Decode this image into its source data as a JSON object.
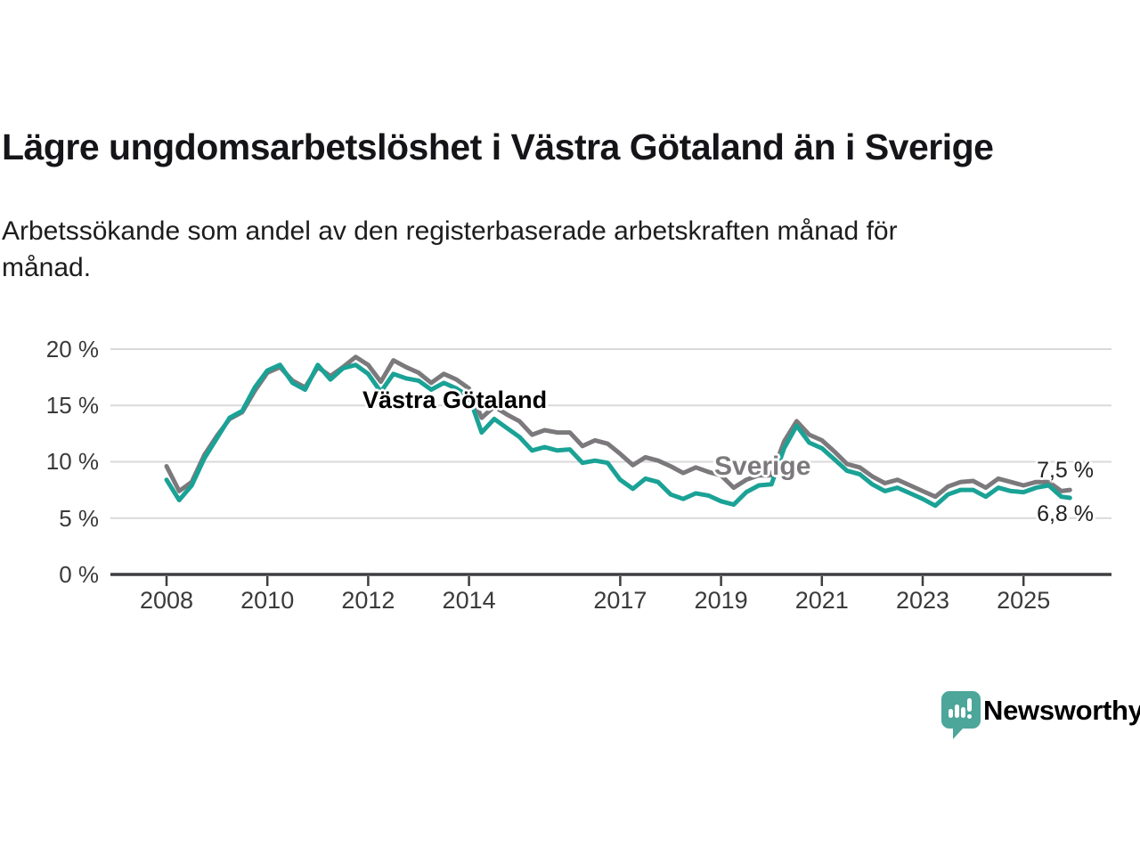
{
  "chart_data": {
    "type": "line",
    "title": "Lägre ungdomsarbetslöshet i Västra Götaland än i Sverige",
    "subtitle_lines": [
      "Arbetssökande som andel av den registerbaserade arbetskraften månad för",
      "månad."
    ],
    "xlabel": "",
    "ylabel": "",
    "ylim": [
      0,
      21
    ],
    "grid": "horizontal",
    "legend_position": "inline-labels",
    "yticks": [
      {
        "v": 20,
        "label": "20 %"
      },
      {
        "v": 15,
        "label": "15 %"
      },
      {
        "v": 10,
        "label": "10 %"
      },
      {
        "v": 5,
        "label": "5 %"
      },
      {
        "v": 0,
        "label": "0 %"
      }
    ],
    "xticks": [
      {
        "v": 2008,
        "label": "2008"
      },
      {
        "v": 2010,
        "label": "2010"
      },
      {
        "v": 2012,
        "label": "2012"
      },
      {
        "v": 2014,
        "label": "2014"
      },
      {
        "v": 2017,
        "label": "2017"
      },
      {
        "v": 2019,
        "label": "2019"
      },
      {
        "v": 2021,
        "label": "2021"
      },
      {
        "v": 2023,
        "label": "2023"
      },
      {
        "v": 2025,
        "label": "2025"
      }
    ],
    "x": [
      2008,
      2008.25,
      2008.5,
      2008.75,
      2009,
      2009.25,
      2009.5,
      2009.75,
      2010,
      2010.25,
      2010.5,
      2010.75,
      2011,
      2011.25,
      2011.5,
      2011.75,
      2012,
      2012.25,
      2012.5,
      2012.75,
      2013,
      2013.25,
      2013.5,
      2013.75,
      2014,
      2014.25,
      2014.5,
      2014.75,
      2015,
      2015.25,
      2015.5,
      2015.75,
      2016,
      2016.25,
      2016.5,
      2016.75,
      2017,
      2017.25,
      2017.5,
      2017.75,
      2018,
      2018.25,
      2018.5,
      2018.75,
      2019,
      2019.25,
      2019.5,
      2019.75,
      2020,
      2020.25,
      2020.5,
      2020.75,
      2021,
      2021.25,
      2021.5,
      2021.75,
      2022,
      2022.25,
      2022.5,
      2022.75,
      2023,
      2023.25,
      2023.5,
      2023.75,
      2024,
      2024.25,
      2024.5,
      2024.75,
      2025,
      2025.25,
      2025.5,
      2025.75,
      2025.92
    ],
    "series": [
      {
        "name": "Sverige",
        "color": "#7b797c",
        "end_value": "7,5 %",
        "values": [
          9.6,
          7.4,
          8.2,
          10.6,
          12.3,
          13.8,
          14.4,
          16.3,
          17.9,
          18.4,
          17.2,
          16.6,
          18.4,
          17.6,
          18.4,
          19.3,
          18.6,
          17.1,
          19.0,
          18.4,
          17.9,
          17.0,
          17.8,
          17.3,
          16.5,
          13.9,
          14.9,
          14.2,
          13.6,
          12.4,
          12.8,
          12.6,
          12.6,
          11.4,
          11.9,
          11.6,
          10.7,
          9.7,
          10.4,
          10.1,
          9.6,
          9.0,
          9.5,
          9.1,
          8.8,
          7.7,
          8.4,
          8.8,
          8.8,
          11.8,
          13.6,
          12.4,
          11.9,
          10.9,
          9.8,
          9.5,
          8.7,
          8.1,
          8.4,
          7.9,
          7.4,
          6.9,
          7.8,
          8.2,
          8.3,
          7.7,
          8.5,
          8.2,
          7.9,
          8.2,
          8.2,
          7.4,
          7.5
        ]
      },
      {
        "name": "Västra Götaland",
        "color": "#1aa296",
        "end_value": "6,8 %",
        "values": [
          8.4,
          6.6,
          7.9,
          10.3,
          12.1,
          13.9,
          14.5,
          16.6,
          18.1,
          18.6,
          17.0,
          16.4,
          18.6,
          17.3,
          18.3,
          18.6,
          17.8,
          16.2,
          17.8,
          17.4,
          17.2,
          16.4,
          17.0,
          16.5,
          15.8,
          12.6,
          13.8,
          13.0,
          12.2,
          11.0,
          11.3,
          11.0,
          11.1,
          9.9,
          10.1,
          9.9,
          8.4,
          7.6,
          8.5,
          8.2,
          7.1,
          6.7,
          7.2,
          7.0,
          6.5,
          6.2,
          7.3,
          7.9,
          8.0,
          11.2,
          13.2,
          11.7,
          11.2,
          10.2,
          9.2,
          8.9,
          8.0,
          7.4,
          7.7,
          7.2,
          6.7,
          6.1,
          7.1,
          7.5,
          7.5,
          6.9,
          7.7,
          7.4,
          7.3,
          7.7,
          7.9,
          6.9,
          6.8
        ]
      }
    ],
    "annotations": {
      "vastra_label": "Västra Götaland",
      "sverige_label": "Sverige",
      "end_value_sverige": "7,5 %",
      "end_value_vastra": "6,8 %"
    },
    "colors": {
      "grid": "#d9d9d9",
      "axis": "#3e3e42",
      "vastra": "#1aa296",
      "sverige": "#7b797c"
    }
  },
  "logo": {
    "text": "Newsworthy",
    "color": "#4ca69a",
    "icon": "newsworthy-bar-chart-speech-bubble"
  }
}
